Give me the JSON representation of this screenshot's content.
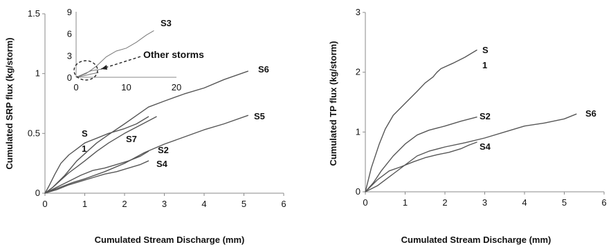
{
  "chart_data": [
    {
      "type": "line",
      "xlabel": "Cumulated Stream Discharge (mm)",
      "ylabel": "Cumulated SRP flux (kg/storm)",
      "xlim": [
        0,
        6
      ],
      "ylim": [
        0,
        1.5
      ],
      "xticks": [
        "0",
        "1",
        "2",
        "3",
        "4",
        "5",
        "6"
      ],
      "yticks": [
        "0",
        "0.5",
        "1",
        "1.5"
      ],
      "series": [
        {
          "name": "S6",
          "label_lines": [
            "S6"
          ],
          "x": [
            0,
            0.2,
            0.5,
            0.8,
            1.0,
            1.3,
            1.6,
            2.0,
            2.3,
            2.6,
            3.0,
            3.5,
            4.0,
            4.5,
            5.1
          ],
          "y": [
            0,
            0.05,
            0.15,
            0.27,
            0.33,
            0.42,
            0.49,
            0.58,
            0.65,
            0.72,
            0.77,
            0.83,
            0.88,
            0.95,
            1.02
          ]
        },
        {
          "name": "S5",
          "label_lines": [
            "S5"
          ],
          "x": [
            0,
            0.3,
            0.7,
            1.0,
            1.5,
            2.0,
            2.5,
            3.0,
            3.5,
            4.0,
            4.5,
            5.1
          ],
          "y": [
            0,
            0.04,
            0.09,
            0.12,
            0.18,
            0.25,
            0.34,
            0.41,
            0.47,
            0.53,
            0.58,
            0.65
          ]
        },
        {
          "name": "S1",
          "label_lines": [
            "S",
            "1"
          ],
          "x": [
            0,
            0.1,
            0.25,
            0.4,
            0.6,
            0.8,
            1.0,
            1.3,
            1.6,
            2.0,
            2.3,
            2.6
          ],
          "y": [
            0,
            0.06,
            0.16,
            0.25,
            0.32,
            0.37,
            0.42,
            0.46,
            0.5,
            0.54,
            0.58,
            0.64
          ]
        },
        {
          "name": "S7",
          "label_lines": [
            "S7"
          ],
          "x": [
            0,
            0.2,
            0.4,
            0.6,
            0.8,
            1.0,
            1.3,
            1.6,
            2.0,
            2.4,
            2.8
          ],
          "y": [
            0,
            0.05,
            0.11,
            0.17,
            0.22,
            0.27,
            0.35,
            0.42,
            0.5,
            0.57,
            0.64
          ]
        },
        {
          "name": "S2",
          "label_lines": [
            "S2"
          ],
          "x": [
            0,
            0.3,
            0.6,
            0.9,
            1.2,
            1.5,
            1.8,
            2.1,
            2.4,
            2.6
          ],
          "y": [
            0,
            0.05,
            0.1,
            0.15,
            0.19,
            0.21,
            0.24,
            0.27,
            0.31,
            0.35
          ]
        },
        {
          "name": "S4",
          "label_lines": [
            "S4"
          ],
          "x": [
            0,
            0.3,
            0.6,
            0.9,
            1.2,
            1.5,
            1.8,
            2.1,
            2.4,
            2.6
          ],
          "y": [
            0,
            0.03,
            0.07,
            0.1,
            0.13,
            0.16,
            0.18,
            0.21,
            0.24,
            0.27
          ]
        }
      ],
      "inset": {
        "type": "line",
        "xlim": [
          0,
          20
        ],
        "ylim": [
          0,
          9
        ],
        "xticks": [
          "0",
          "10",
          "20"
        ],
        "yticks": [
          "0",
          "3",
          "6",
          "9"
        ],
        "series": [
          {
            "name": "S3",
            "label_lines": [
              "S3"
            ],
            "x": [
              0,
              2,
              4,
              6,
              8,
              10,
              12,
              14,
              15.5
            ],
            "y": [
              0,
              0.5,
              1.5,
              2.8,
              3.6,
              4.0,
              4.8,
              5.8,
              6.4
            ]
          },
          {
            "name": "Other storms",
            "label_lines": [],
            "x": [
              0,
              1,
              2,
              3,
              4,
              5
            ],
            "y": [
              0,
              0.3,
              0.6,
              0.9,
              1.0,
              1.1
            ]
          },
          {
            "name": "Other storms b",
            "label_lines": [],
            "x": [
              0,
              1.5,
              3,
              4.5
            ],
            "y": [
              0,
              0.2,
              0.45,
              0.65
            ]
          }
        ],
        "annotation": "Other storms"
      }
    },
    {
      "type": "line",
      "xlabel": "Cumulated Stream Discharge (mm)",
      "ylabel": "Cumulated TP flux (kg/storm)",
      "xlim": [
        0,
        6
      ],
      "ylim": [
        0,
        3
      ],
      "xticks": [
        "0",
        "1",
        "2",
        "3",
        "4",
        "5",
        "6"
      ],
      "yticks": [
        "0",
        "1",
        "2",
        "3"
      ],
      "series": [
        {
          "name": "S1",
          "label_lines": [
            "S",
            "1"
          ],
          "x": [
            0,
            0.15,
            0.35,
            0.5,
            0.7,
            1.0,
            1.3,
            1.5,
            1.7,
            1.8,
            1.9,
            2.2,
            2.5,
            2.8
          ],
          "y": [
            0,
            0.4,
            0.8,
            1.05,
            1.28,
            1.48,
            1.68,
            1.82,
            1.92,
            2.0,
            2.06,
            2.15,
            2.25,
            2.37
          ]
        },
        {
          "name": "S2",
          "label_lines": [
            "S2"
          ],
          "x": [
            0,
            0.2,
            0.4,
            0.7,
            1.0,
            1.3,
            1.6,
            2.0,
            2.4,
            2.8
          ],
          "y": [
            0,
            0.15,
            0.35,
            0.6,
            0.8,
            0.95,
            1.03,
            1.1,
            1.18,
            1.25
          ]
        },
        {
          "name": "S4",
          "label_lines": [
            "S4"
          ],
          "x": [
            0,
            0.3,
            0.6,
            0.9,
            1.2,
            1.5,
            1.8,
            2.1,
            2.4,
            2.6,
            2.8
          ],
          "y": [
            0,
            0.2,
            0.35,
            0.42,
            0.5,
            0.57,
            0.62,
            0.66,
            0.72,
            0.78,
            0.83
          ]
        },
        {
          "name": "S6",
          "label_lines": [
            "S6"
          ],
          "x": [
            0,
            0.3,
            0.7,
            1.0,
            1.3,
            1.6,
            2.0,
            2.5,
            3.0,
            3.5,
            4.0,
            4.5,
            5.0,
            5.3
          ],
          "y": [
            0,
            0.1,
            0.3,
            0.45,
            0.6,
            0.68,
            0.75,
            0.82,
            0.9,
            1.0,
            1.1,
            1.15,
            1.22,
            1.3
          ]
        }
      ]
    }
  ]
}
